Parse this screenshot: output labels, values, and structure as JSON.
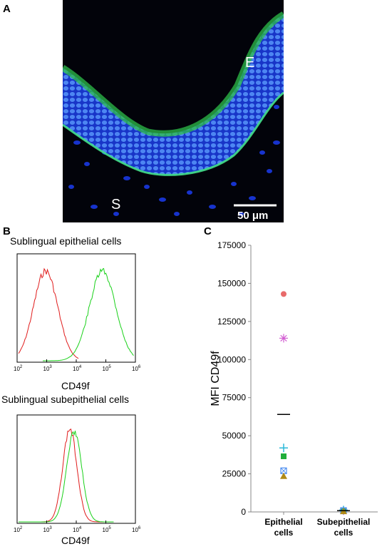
{
  "panel_labels": {
    "a": "A",
    "b": "B",
    "c": "C"
  },
  "panel_a": {
    "label_e": "E",
    "label_s": "S",
    "scale_bar": "50 μm",
    "colors": {
      "nuclei": "#1a3cff",
      "cd49f": "#2dbf4a",
      "background": "#02030a"
    }
  },
  "panel_b": {
    "top_title": "Sublingual epithelial cells",
    "bottom_title": "Sublingual subepithelial cells",
    "xlabel": "CD49f",
    "ticks": [
      {
        "base": "10",
        "exp": "2"
      },
      {
        "base": "10",
        "exp": "3"
      },
      {
        "base": "10",
        "exp": "4"
      },
      {
        "base": "10",
        "exp": "5"
      },
      {
        "base": "10",
        "exp": "6"
      }
    ],
    "colors": {
      "isotype": "#e01b1b",
      "cd49f": "#19d119"
    }
  },
  "chart_data": {
    "type": "scatter",
    "ylabel": "MFI CD49f",
    "ylim": [
      0,
      175000
    ],
    "yticks": [
      "0",
      "25000",
      "50000",
      "75000",
      "100000",
      "125000",
      "150000",
      "175000"
    ],
    "categories": [
      {
        "line1": "Epithelial",
        "line2": "cells"
      },
      {
        "line1": "Subepithelial",
        "line2": "cells"
      }
    ],
    "series": [
      {
        "marker": "circle",
        "color": "#e86a6a",
        "values": [
          143000,
          600
        ]
      },
      {
        "marker": "asterisk",
        "color": "#d25cd2",
        "values": [
          114000,
          800
        ]
      },
      {
        "marker": "plus",
        "color": "#2ab8d8",
        "values": [
          42000,
          1200
        ]
      },
      {
        "marker": "square",
        "color": "#1fae3a",
        "values": [
          36500,
          500
        ]
      },
      {
        "marker": "boxx",
        "color": "#4a8cf0",
        "values": [
          27000,
          900
        ]
      },
      {
        "marker": "triangle",
        "color": "#b08a16",
        "values": [
          23500,
          400
        ]
      }
    ],
    "mean": [
      64000,
      800
    ]
  }
}
